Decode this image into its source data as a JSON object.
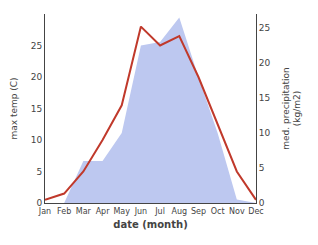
{
  "chart_data": {
    "type": "line",
    "xlabel": "date (month)",
    "ylabel": "max temp (C)",
    "y2label": "med. precipitation\n(kg/m2)",
    "categories": [
      "Jan",
      "Feb",
      "Mar",
      "Apr",
      "May",
      "Jun",
      "Jul",
      "Aug",
      "Sep",
      "Oct",
      "Nov",
      "Dec"
    ],
    "ylim": [
      0,
      30
    ],
    "yticks": [
      0,
      5,
      10,
      15,
      20,
      25
    ],
    "y2lim": [
      0,
      27
    ],
    "y2ticks": [
      0,
      5,
      10,
      15,
      20,
      25
    ],
    "grid": false,
    "series": [
      {
        "type": "area",
        "axis": "y2",
        "color": "#bdc8f0",
        "values": [
          0.0,
          0.0,
          6.0,
          6.0,
          10.0,
          22.5,
          23.0,
          26.5,
          18.0,
          10.0,
          0.5,
          0.0
        ]
      },
      {
        "type": "line",
        "color": "#c0392b",
        "values": [
          0.5,
          1.5,
          5.0,
          10.0,
          15.5,
          28.0,
          25.0,
          26.5,
          20.0,
          12.5,
          5.0,
          0.5
        ]
      }
    ]
  }
}
